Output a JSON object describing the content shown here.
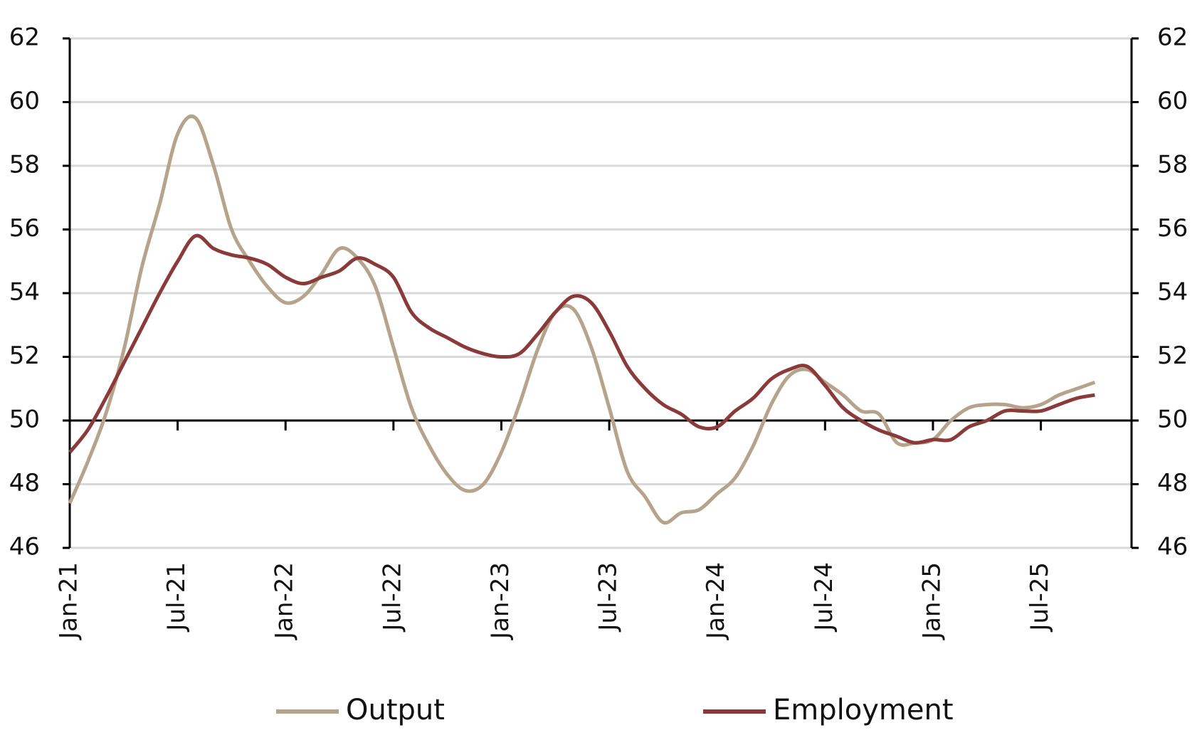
{
  "chart_data": {
    "type": "line",
    "categories": [
      "Jan-21",
      null,
      null,
      null,
      null,
      null,
      "Jul-21",
      null,
      null,
      null,
      null,
      null,
      "Jan-22",
      null,
      null,
      null,
      null,
      null,
      "Jul-22",
      null,
      null,
      null,
      null,
      null,
      "Jan-23",
      null,
      null,
      null,
      null,
      null,
      "Jul-23",
      null,
      null,
      null,
      null,
      null,
      "Jan-24",
      null,
      null,
      null,
      null,
      null,
      "Jul-24",
      null,
      null,
      null,
      null,
      null,
      "Jan-25",
      null,
      null,
      null,
      null,
      null,
      "Jul-25",
      null,
      null,
      null
    ],
    "series": [
      {
        "name": "Output",
        "color": "#b5a38c",
        "values": [
          47.4,
          48.7,
          50.2,
          52.2,
          54.8,
          56.8,
          59.0,
          59.5,
          58.0,
          56.0,
          55.0,
          54.2,
          53.7,
          53.9,
          54.6,
          55.4,
          55.1,
          54.2,
          52.3,
          50.4,
          49.2,
          48.3,
          47.8,
          48.0,
          49.0,
          50.5,
          52.2,
          53.4,
          53.5,
          52.3,
          50.4,
          48.4,
          47.6,
          46.8,
          47.1,
          47.2,
          47.7,
          48.2,
          49.2,
          50.5,
          51.4,
          51.6,
          51.2,
          50.8,
          50.3,
          50.2,
          49.3,
          49.3,
          49.4,
          50.0,
          50.4,
          50.5,
          50.5,
          50.4,
          50.5,
          50.8,
          51.0,
          51.2
        ]
      },
      {
        "name": "Employment",
        "color": "#8b3a3a",
        "values": [
          49.0,
          49.7,
          50.7,
          51.8,
          52.9,
          54.0,
          55.0,
          55.8,
          55.4,
          55.2,
          55.1,
          54.9,
          54.5,
          54.3,
          54.5,
          54.7,
          55.1,
          54.9,
          54.5,
          53.4,
          52.9,
          52.6,
          52.3,
          52.1,
          52.0,
          52.1,
          52.7,
          53.4,
          53.9,
          53.7,
          52.8,
          51.7,
          51.0,
          50.5,
          50.2,
          49.8,
          49.8,
          50.3,
          50.7,
          51.3,
          51.6,
          51.7,
          51.1,
          50.4,
          50.0,
          49.7,
          49.5,
          49.3,
          49.4,
          49.4,
          49.8,
          50.0,
          50.3,
          50.3,
          50.3,
          50.5,
          50.7,
          50.8
        ]
      }
    ],
    "ylim": [
      46,
      62
    ],
    "yticks": [
      46,
      48,
      50,
      52,
      54,
      56,
      58,
      60,
      62
    ],
    "y2lim": [
      46,
      62
    ],
    "y2ticks": [
      46,
      48,
      50,
      52,
      54,
      56,
      58,
      60,
      62
    ],
    "baseline": 50,
    "grid": true,
    "legend": "bottom"
  }
}
